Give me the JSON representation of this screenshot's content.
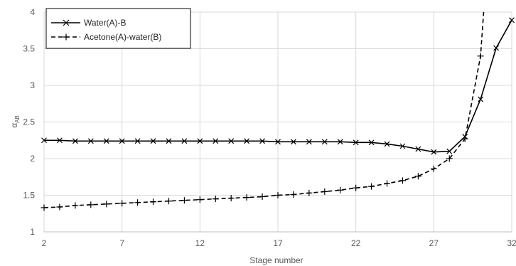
{
  "chart_data": {
    "type": "line",
    "xlabel": "Stage number",
    "ylabel": "α",
    "ylabel_subscript": "AB",
    "xlim": [
      2,
      32
    ],
    "ylim": [
      1,
      4
    ],
    "xticks": [
      2,
      7,
      12,
      17,
      22,
      27,
      32
    ],
    "xtick_labels": [
      "2",
      "7",
      "12",
      "17",
      "22",
      "27",
      "32"
    ],
    "yticks": [
      1,
      1.5,
      2,
      2.5,
      3,
      3.5,
      4
    ],
    "ytick_labels": [
      "1",
      "1.5",
      "2",
      "2.5",
      "3",
      "3.5",
      "4"
    ],
    "grid": true,
    "legend_position": "top-left",
    "series": [
      {
        "name": "Water(A)-B",
        "line_style": "solid",
        "marker": "x",
        "color": "#000000",
        "x": [
          2,
          3,
          4,
          5,
          6,
          7,
          8,
          9,
          10,
          11,
          12,
          13,
          14,
          15,
          16,
          17,
          18,
          19,
          20,
          21,
          22,
          23,
          24,
          25,
          26,
          27,
          28,
          29,
          30,
          31,
          32
        ],
        "y": [
          2.25,
          2.25,
          2.24,
          2.24,
          2.24,
          2.24,
          2.24,
          2.24,
          2.24,
          2.24,
          2.24,
          2.24,
          2.24,
          2.24,
          2.24,
          2.23,
          2.23,
          2.23,
          2.23,
          2.23,
          2.22,
          2.22,
          2.2,
          2.17,
          2.13,
          2.09,
          2.1,
          2.3,
          2.81,
          3.51,
          3.89
        ]
      },
      {
        "name": "Acetone(A)-water(B)",
        "line_style": "dashed",
        "marker": "+",
        "color": "#000000",
        "x": [
          2,
          3,
          4,
          5,
          6,
          7,
          8,
          9,
          10,
          11,
          12,
          13,
          14,
          15,
          16,
          17,
          18,
          19,
          20,
          21,
          22,
          23,
          24,
          25,
          26,
          27,
          28,
          29,
          30,
          30.2
        ],
        "y": [
          1.33,
          1.34,
          1.36,
          1.37,
          1.38,
          1.39,
          1.4,
          1.41,
          1.42,
          1.43,
          1.44,
          1.45,
          1.46,
          1.47,
          1.48,
          1.5,
          1.51,
          1.53,
          1.55,
          1.57,
          1.6,
          1.62,
          1.66,
          1.7,
          1.76,
          1.86,
          2.0,
          2.27,
          3.4,
          4.0
        ]
      }
    ]
  }
}
